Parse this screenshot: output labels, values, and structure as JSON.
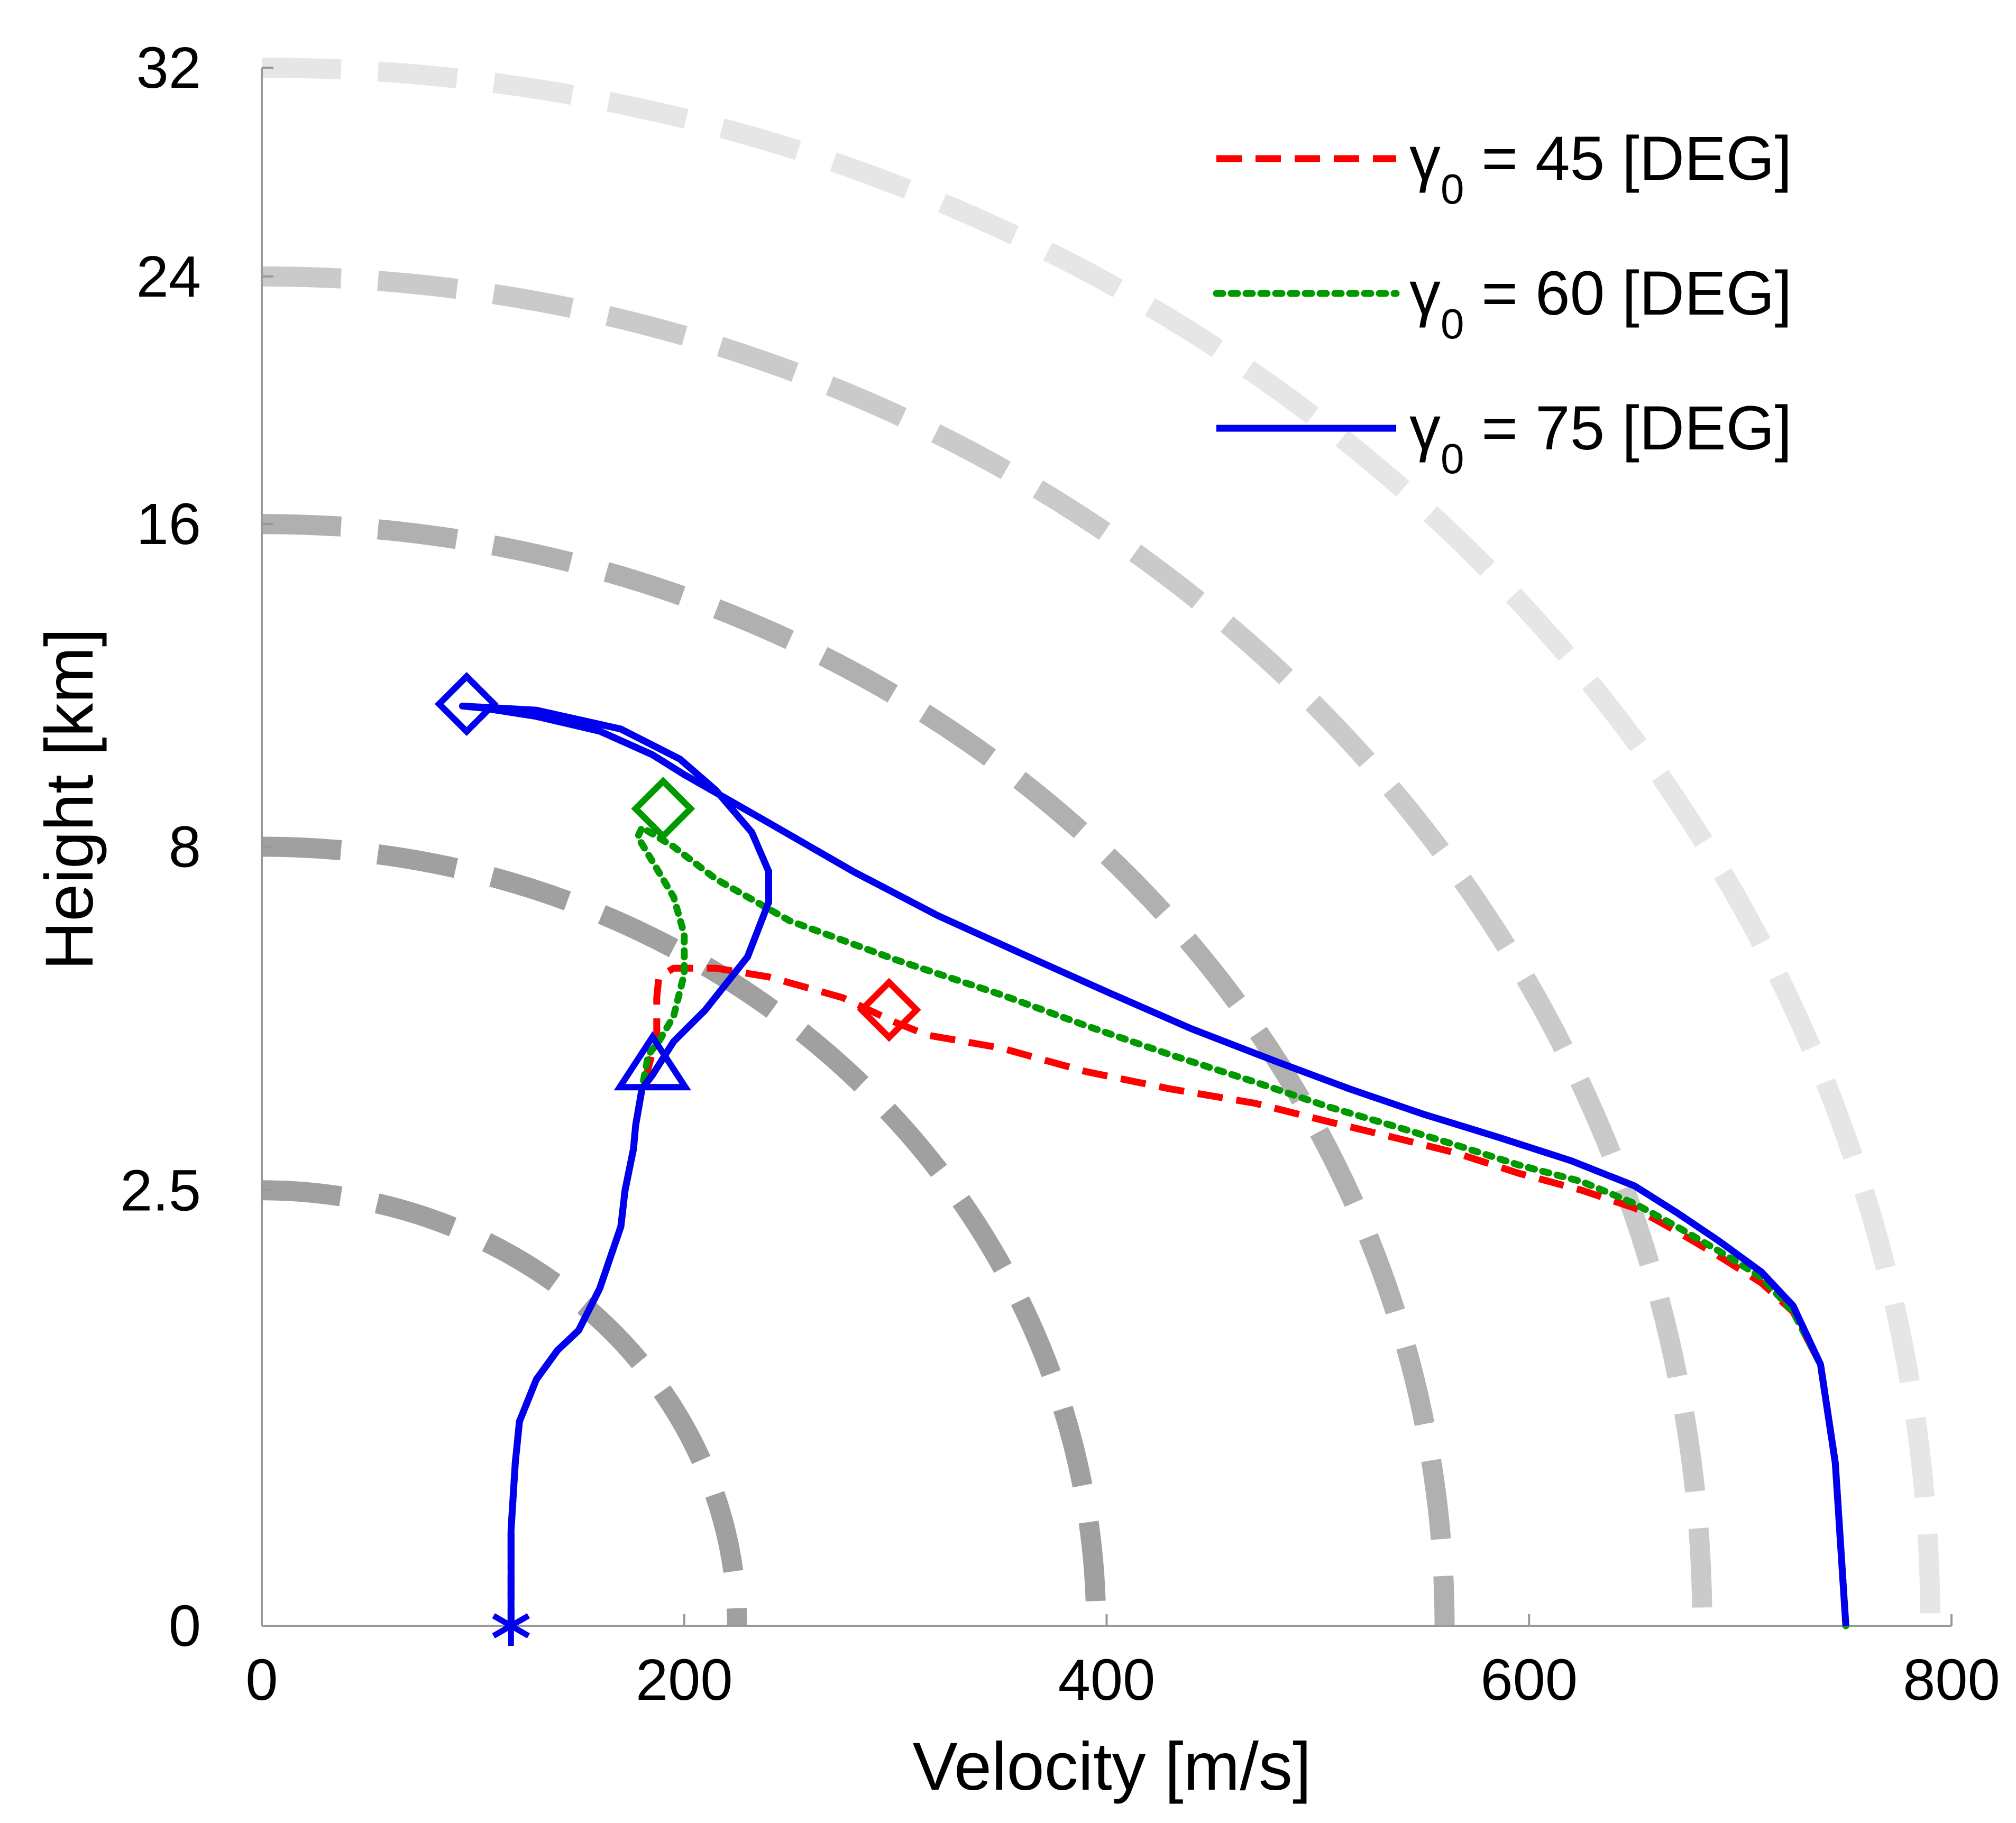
{
  "chart_data": {
    "type": "line",
    "xlabel": "Velocity [m/s]",
    "ylabel": "Height [km]",
    "xlim": [
      0,
      800
    ],
    "x_ticks": [
      "0",
      "200",
      "400",
      "600",
      "800"
    ],
    "y_ticks": [
      "0",
      "2.5",
      "8",
      "16",
      "24",
      "32"
    ],
    "y_scale": "square-root",
    "grid": false,
    "legend_position": "top-right",
    "background_contours": {
      "style": "thick gray dashed arcs",
      "velocity_at_ground": [
        225,
        395,
        560,
        682,
        790
      ],
      "height_at_zero_velocity_km": [
        2.5,
        8,
        16,
        24,
        32
      ]
    },
    "series": [
      {
        "name": "γ0 = 45 [DEG]",
        "legend_symbol": "γ",
        "legend_subscript": "0",
        "legend_rest": " = 45 [DEG]",
        "color": "#ff0000",
        "style": "dashed",
        "x": [
          750,
          745,
          738,
          725,
          710,
          690,
          670,
          650,
          625,
          595,
          565,
          535,
          505,
          470,
          430,
          390,
          350,
          315,
          300,
          275,
          240,
          215,
          195,
          188,
          187,
          187,
          187,
          183,
          180,
          177,
          176,
          172,
          170,
          160,
          150,
          140,
          130,
          122,
          120,
          118,
          118
        ],
        "y": [
          0.0,
          0.35,
          0.9,
          1.3,
          1.55,
          1.8,
          2.05,
          2.3,
          2.5,
          2.7,
          2.95,
          3.15,
          3.35,
          3.6,
          3.8,
          4.05,
          4.4,
          4.6,
          4.8,
          5.2,
          5.55,
          5.7,
          5.7,
          5.55,
          5.2,
          4.9,
          4.6,
          4.1,
          3.8,
          3.3,
          3.0,
          2.5,
          2.1,
          1.5,
          1.15,
          1.0,
          0.8,
          0.55,
          0.35,
          0.12,
          0.0
        ]
      },
      {
        "name": "γ0 = 60 [DEG]",
        "legend_symbol": "γ",
        "legend_subscript": "0",
        "legend_rest": " = 60 [DEG]",
        "color": "#009900",
        "style": "dotted",
        "x": [
          750,
          745,
          738,
          725,
          710,
          690,
          670,
          650,
          625,
          595,
          565,
          535,
          505,
          470,
          430,
          390,
          350,
          300,
          250,
          215,
          195,
          180,
          178,
          185,
          195,
          200,
          200,
          195,
          188,
          183,
          180,
          177,
          176,
          172,
          170,
          160,
          150,
          140,
          130,
          122,
          120,
          118,
          118
        ],
        "y": [
          0.0,
          0.35,
          0.9,
          1.3,
          1.6,
          1.85,
          2.1,
          2.35,
          2.6,
          2.8,
          3.05,
          3.3,
          3.55,
          3.9,
          4.3,
          4.75,
          5.25,
          5.85,
          6.55,
          7.35,
          8.0,
          8.4,
          8.2,
          7.7,
          7.0,
          6.3,
          5.6,
          4.9,
          4.5,
          4.3,
          3.8,
          3.3,
          3.0,
          2.5,
          2.1,
          1.5,
          1.15,
          1.0,
          0.8,
          0.55,
          0.35,
          0.12,
          0.0
        ]
      },
      {
        "name": "γ0 = 75 [DEG]",
        "legend_symbol": "γ",
        "legend_subscript": "0",
        "legend_rest": " = 75 [DEG]",
        "color": "#0000ee",
        "style": "solid",
        "x": [
          750,
          745,
          738,
          725,
          710,
          690,
          670,
          650,
          620,
          585,
          550,
          515,
          480,
          440,
          400,
          360,
          320,
          280,
          240,
          200,
          185,
          160,
          130,
          105,
          95,
          130,
          170,
          198,
          215,
          232,
          240,
          240,
          230,
          210,
          195,
          185,
          180,
          177,
          176,
          172,
          170,
          160,
          150,
          140,
          130,
          122,
          120,
          118,
          118
        ],
        "y": [
          0.0,
          0.35,
          0.9,
          1.35,
          1.65,
          1.95,
          2.25,
          2.55,
          2.85,
          3.15,
          3.45,
          3.8,
          4.2,
          4.7,
          5.3,
          5.95,
          6.65,
          7.5,
          8.5,
          9.55,
          10.0,
          10.55,
          10.9,
          11.1,
          11.15,
          11.05,
          10.6,
          9.9,
          9.2,
          8.3,
          7.5,
          6.9,
          5.9,
          5.0,
          4.5,
          4.0,
          3.8,
          3.3,
          3.0,
          2.5,
          2.1,
          1.5,
          1.15,
          1.0,
          0.8,
          0.55,
          0.35,
          0.12,
          0.0
        ]
      }
    ],
    "markers": [
      {
        "series": 0,
        "shape": "diamond",
        "x": 297,
        "y": 5.0
      },
      {
        "series": 1,
        "shape": "diamond",
        "x": 190,
        "y": 8.8
      },
      {
        "series": 2,
        "shape": "diamond",
        "x": 97,
        "y": 11.2
      },
      {
        "series": 2,
        "shape": "triangle",
        "x": 185,
        "y": 4.1
      },
      {
        "series": 2,
        "shape": "asterisk",
        "x": 118,
        "y": 0.0
      }
    ]
  }
}
